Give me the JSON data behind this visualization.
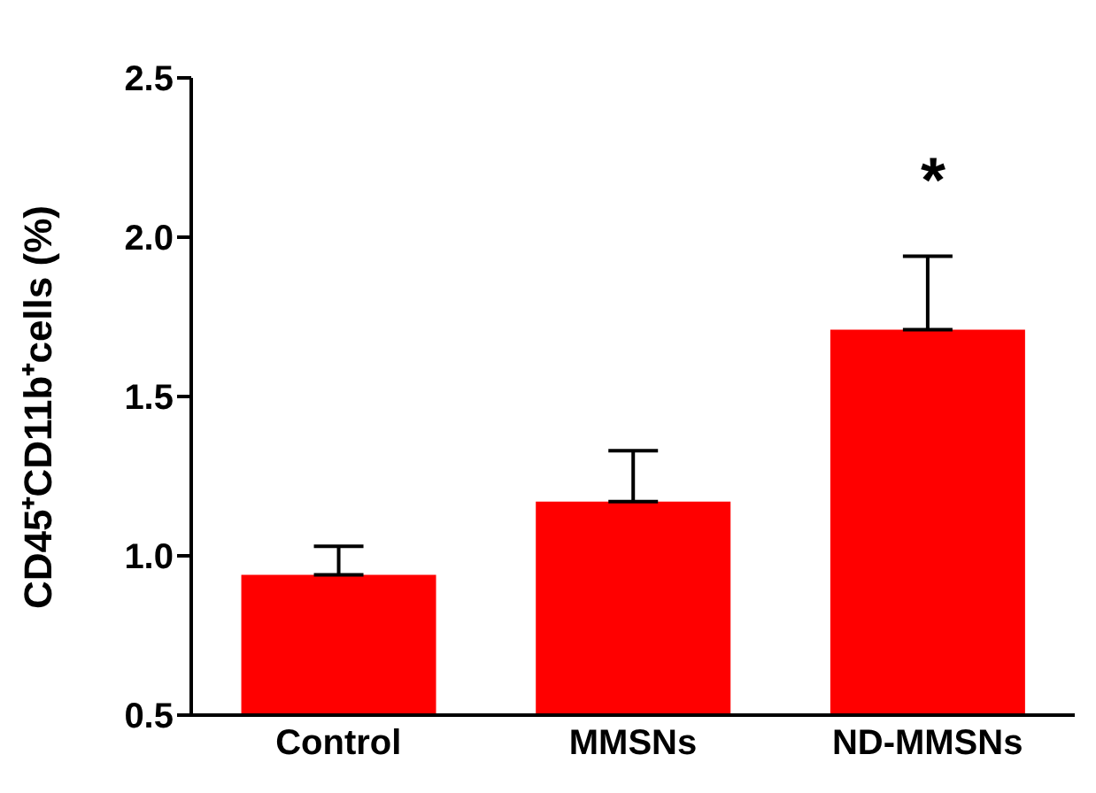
{
  "chart_data": {
    "type": "bar",
    "categories": [
      "Control",
      "MMSNs",
      "ND-MMSNs"
    ],
    "values": [
      0.94,
      1.17,
      1.71
    ],
    "color": "#ff0000",
    "errors": [
      [
        0.94,
        1.03
      ],
      [
        1.17,
        1.33
      ],
      [
        1.71,
        1.94
      ]
    ],
    "ylabel": "CD45⁺CD11b⁺cells (%)",
    "ylim": [
      0.5,
      2.5
    ],
    "yticks": [
      {
        "value": 0.5,
        "label": "0.5"
      },
      {
        "value": 1.0,
        "label": "1.0"
      },
      {
        "value": 1.5,
        "label": "1.5"
      },
      {
        "value": 2.0,
        "label": "2.0"
      },
      {
        "value": 2.5,
        "label": "2.5"
      }
    ],
    "grid": false,
    "legend": false,
    "annotations": [
      "*"
    ]
  }
}
